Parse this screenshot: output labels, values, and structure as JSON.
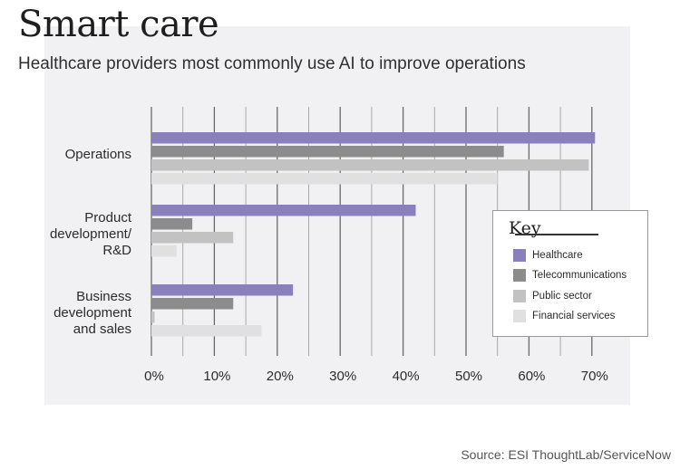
{
  "header": {
    "title": "Smart care",
    "subtitle": "Healthcare providers most commonly use AI to improve operations"
  },
  "footer": {
    "source": "Source: ESI ThoughtLab/ServiceNow"
  },
  "legend": {
    "title": "Key",
    "items": [
      {
        "label": "Healthcare",
        "color": "#8a80bd"
      },
      {
        "label": "Telecommunications",
        "color": "#8c8c8c"
      },
      {
        "label": "Public sector",
        "color": "#c2c2c2"
      },
      {
        "label": "Financial services",
        "color": "#e0e0e0"
      }
    ]
  },
  "chart_data": {
    "type": "bar",
    "orientation": "horizontal",
    "categories": [
      [
        "Operations"
      ],
      [
        "Product",
        "development/",
        "R&D"
      ],
      [
        "Business",
        "development",
        "and sales"
      ]
    ],
    "series": [
      {
        "name": "Healthcare",
        "color": "#8a80bd",
        "values": [
          70.5,
          42,
          22.5
        ]
      },
      {
        "name": "Telecommunications",
        "color": "#8c8c8c",
        "values": [
          56,
          6.5,
          13
        ]
      },
      {
        "name": "Public sector",
        "color": "#c2c2c2",
        "values": [
          69.5,
          13,
          0.5
        ]
      },
      {
        "name": "Financial services",
        "color": "#e0e0e0",
        "values": [
          55,
          4,
          17.5
        ]
      }
    ],
    "x_ticks": [
      "0%",
      "10%",
      "20%",
      "30%",
      "40%",
      "50%",
      "60%",
      "70%"
    ],
    "xlim": [
      0,
      70
    ],
    "grid": true,
    "legend_position": "right"
  }
}
